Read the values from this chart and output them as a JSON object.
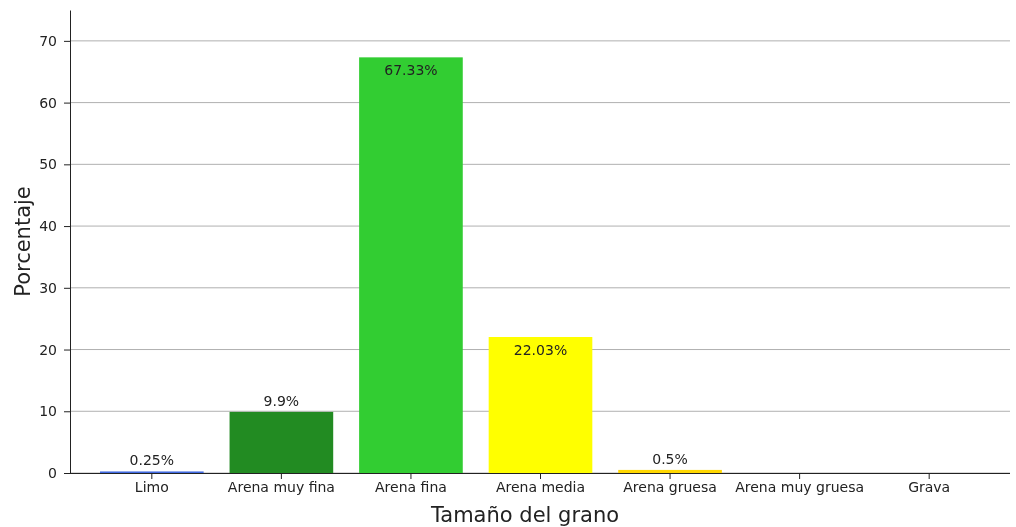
{
  "chart_data": {
    "type": "bar",
    "xlabel": "Tamaño del grano",
    "ylabel": "Porcentaje",
    "categories": [
      "Limo",
      "Arena muy fina",
      "Arena fina",
      "Arena media",
      "Arena gruesa",
      "Arena muy gruesa",
      "Grava"
    ],
    "values": [
      0.25,
      9.9,
      67.33,
      22.03,
      0.5,
      0,
      0
    ],
    "colors": [
      "#4169e1",
      "#228b22",
      "#32cd32",
      "#ffff00",
      "#ffd700",
      "#d2691e",
      "#808080"
    ],
    "value_labels": [
      "0.25%",
      "9.9%",
      "67.33%",
      "22.03%",
      "0.5%",
      null,
      null
    ],
    "ylim": [
      0,
      75
    ],
    "yticks": [
      0,
      10,
      20,
      30,
      40,
      50,
      60,
      70
    ],
    "grid": "y"
  }
}
